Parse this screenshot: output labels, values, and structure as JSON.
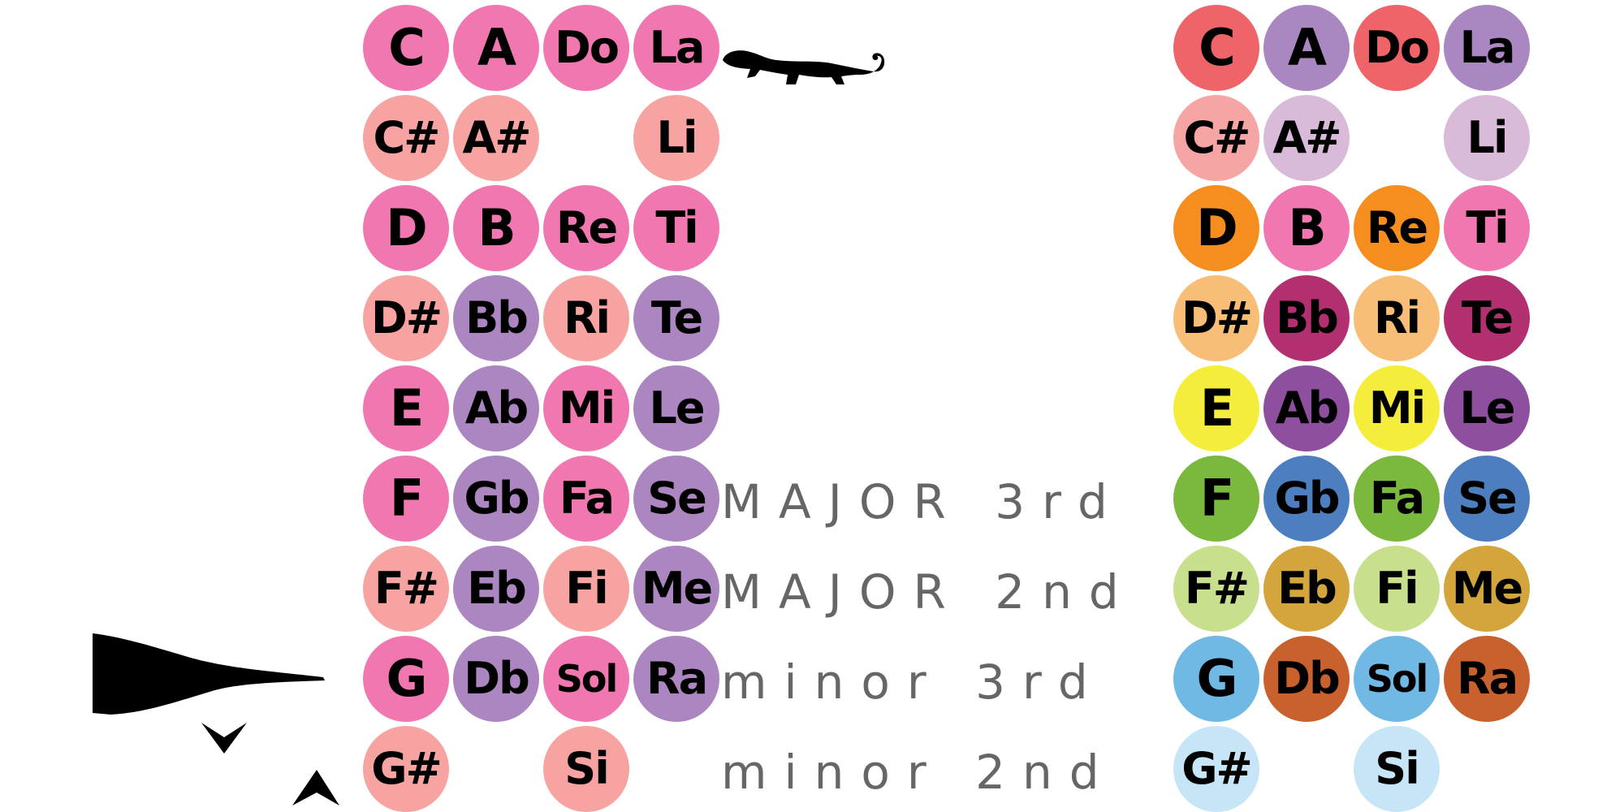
{
  "colors": {
    "left_pink": "#f177b0",
    "left_salmon": "#f6a3a2",
    "left_purple": "#ab86c0",
    "interval_text": "#666666"
  },
  "left_grid": {
    "rows": [
      [
        {
          "label": "C",
          "color": "#f177b0"
        },
        {
          "label": "A",
          "color": "#f177b0"
        },
        {
          "label": "Do",
          "color": "#f177b0"
        },
        {
          "label": "La",
          "color": "#f177b0"
        }
      ],
      [
        {
          "label": "C#",
          "color": "#f6a3a2"
        },
        {
          "label": "A#",
          "color": "#f6a3a2"
        },
        null,
        {
          "label": "Li",
          "color": "#f6a3a2"
        }
      ],
      [
        {
          "label": "D",
          "color": "#f177b0"
        },
        {
          "label": "B",
          "color": "#f177b0"
        },
        {
          "label": "Re",
          "color": "#f177b0"
        },
        {
          "label": "Ti",
          "color": "#f177b0"
        }
      ],
      [
        {
          "label": "D#",
          "color": "#f6a3a2"
        },
        {
          "label": "Bb",
          "color": "#ab86c0"
        },
        {
          "label": "Ri",
          "color": "#f6a3a2"
        },
        {
          "label": "Te",
          "color": "#ab86c0"
        }
      ],
      [
        {
          "label": "E",
          "color": "#f177b0"
        },
        {
          "label": "Ab",
          "color": "#ab86c0"
        },
        {
          "label": "Mi",
          "color": "#f177b0"
        },
        {
          "label": "Le",
          "color": "#ab86c0"
        }
      ],
      [
        {
          "label": "F",
          "color": "#f177b0"
        },
        {
          "label": "Gb",
          "color": "#ab86c0"
        },
        {
          "label": "Fa",
          "color": "#f177b0"
        },
        {
          "label": "Se",
          "color": "#ab86c0"
        }
      ],
      [
        {
          "label": "F#",
          "color": "#f6a3a2"
        },
        {
          "label": "Eb",
          "color": "#ab86c0"
        },
        {
          "label": "Fi",
          "color": "#f6a3a2"
        },
        {
          "label": "Me",
          "color": "#ab86c0"
        }
      ],
      [
        {
          "label": "G",
          "color": "#f177b0"
        },
        {
          "label": "Db",
          "color": "#ab86c0"
        },
        {
          "label": "Sol",
          "color": "#f177b0"
        },
        {
          "label": "Ra",
          "color": "#ab86c0"
        }
      ],
      [
        {
          "label": "G#",
          "color": "#f6a3a2"
        },
        null,
        {
          "label": "Si",
          "color": "#f6a3a2"
        },
        null
      ]
    ]
  },
  "right_grid": {
    "rows": [
      [
        {
          "label": "C",
          "color": "#ef6468"
        },
        {
          "label": "A",
          "color": "#ab87c1"
        },
        {
          "label": "Do",
          "color": "#ef6468"
        },
        {
          "label": "La",
          "color": "#ab87c1"
        }
      ],
      [
        {
          "label": "C#",
          "color": "#f6a5a5"
        },
        {
          "label": "A#",
          "color": "#d9bad9"
        },
        null,
        {
          "label": "Li",
          "color": "#d9bad9"
        }
      ],
      [
        {
          "label": "D",
          "color": "#f58d1f"
        },
        {
          "label": "B",
          "color": "#f177b0"
        },
        {
          "label": "Re",
          "color": "#f58d1f"
        },
        {
          "label": "Ti",
          "color": "#f177b0"
        }
      ],
      [
        {
          "label": "D#",
          "color": "#f8be78"
        },
        {
          "label": "Bb",
          "color": "#b22f70"
        },
        {
          "label": "Ri",
          "color": "#f8be78"
        },
        {
          "label": "Te",
          "color": "#b22f70"
        }
      ],
      [
        {
          "label": "E",
          "color": "#f4ed3c"
        },
        {
          "label": "Ab",
          "color": "#8d4f9e"
        },
        {
          "label": "Mi",
          "color": "#f4ed3c"
        },
        {
          "label": "Le",
          "color": "#8d4f9e"
        }
      ],
      [
        {
          "label": "F",
          "color": "#7ab83e"
        },
        {
          "label": "Gb",
          "color": "#4c7ec0"
        },
        {
          "label": "Fa",
          "color": "#7ab83e"
        },
        {
          "label": "Se",
          "color": "#4c7ec0"
        }
      ],
      [
        {
          "label": "F#",
          "color": "#c8e08d"
        },
        {
          "label": "Eb",
          "color": "#d4a53d"
        },
        {
          "label": "Fi",
          "color": "#c8e08d"
        },
        {
          "label": "Me",
          "color": "#d4a53d"
        }
      ],
      [
        {
          "label": "G",
          "color": "#70b9e5"
        },
        {
          "label": "Db",
          "color": "#c9612e"
        },
        {
          "label": "Sol",
          "color": "#70b9e5"
        },
        {
          "label": "Ra",
          "color": "#c9612e"
        }
      ],
      [
        {
          "label": "G#",
          "color": "#c6e5f6"
        },
        null,
        {
          "label": "Si",
          "color": "#c6e5f6"
        },
        null
      ]
    ]
  },
  "intervals": [
    {
      "row": 5,
      "text": "MAJOR 3rd"
    },
    {
      "row": 6,
      "text": "MAJOR 2nd"
    },
    {
      "row": 7,
      "text": "minor 3rd"
    },
    {
      "row": 8,
      "text": "minor 2nd"
    }
  ],
  "decorations": {
    "gecko": "gecko-silhouette-icon",
    "fish": "fish-tail-silhouette-icon"
  }
}
